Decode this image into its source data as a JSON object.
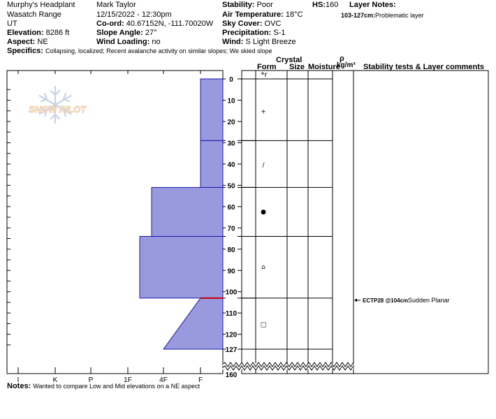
{
  "header": {
    "location": "Murphy's Headplant",
    "range": "Wasatch Range",
    "state": "UT",
    "elevation_label": "Elevation:",
    "elevation": "8286 ft",
    "aspect_label": "Aspect:",
    "aspect": "NE",
    "observer": "Mark Taylor",
    "datetime": "12/15/2022 - 12:30pm",
    "coord_label": "Co-ord:",
    "coord": "40.67152N, -111.70020W",
    "slope_label": "Slope Angle:",
    "slope": "27°",
    "wind_loading_label": "Wind Loading:",
    "wind_loading": "no",
    "stability_label": "Stability:",
    "stability": "Poor",
    "air_temp_label": "Air Temperature:",
    "air_temp": "18°C",
    "sky_label": "Sky Cover:",
    "sky": "OVC",
    "precip_label": "Precipitation:",
    "precip": "S-1",
    "wind_label": "Wind:",
    "wind": "S Light Breeze",
    "hs_label": "HS:",
    "hs": "160",
    "layer_notes_label": "Layer Notes:",
    "layer_note_depth": "103-127cm:",
    "layer_note_text": "Problematic layer",
    "specifics_label": "Specifics:",
    "specifics": "Collapsing, localized; Recent avalanche activity on similar slopes; We skied slope"
  },
  "notes": {
    "label": "Notes:",
    "text": "Wanted to compare Low and Mid elevations on a NE aspect"
  },
  "logo": {
    "text": "SNOW PILOT"
  },
  "columns": {
    "crystal": "Crystal",
    "form": "Form",
    "size": "Size",
    "moisture": "Moisture",
    "rho": "ρ",
    "density": "kg/m³",
    "comments": "Stability tests & Layer comments"
  },
  "colors": {
    "layer_fill": "#9999dd",
    "layer_stroke": "#1a1ab0",
    "red_line": "#cc0000",
    "grid": "#000000"
  },
  "chart_data": {
    "type": "snow_profile_hardness",
    "hardness_scale": [
      "I",
      "K",
      "P",
      "1F",
      "4F",
      "F"
    ],
    "depth_ticks": [
      0,
      10,
      20,
      30,
      40,
      50,
      60,
      70,
      80,
      90,
      100,
      110,
      120,
      127
    ],
    "depth_bottom_label": "160",
    "depth_range_cm": [
      0,
      160
    ],
    "layer_boundaries_cm": [
      0,
      29,
      51,
      74,
      103,
      127
    ],
    "layers": [
      {
        "top": 0,
        "bottom": 29,
        "hardness": "F"
      },
      {
        "top": 29,
        "bottom": 51,
        "hardness": "F"
      },
      {
        "top": 51,
        "bottom": 74,
        "hardness": "4F+"
      },
      {
        "top": 74,
        "bottom": 103,
        "hardness": "1F-"
      },
      {
        "top": 103,
        "bottom": 127,
        "hardness_top": "F",
        "hardness_bottom": "4F"
      }
    ],
    "surface_form": "*r",
    "grain_forms": [
      {
        "depth": 15,
        "symbol": "+"
      },
      {
        "depth": 40,
        "symbol": "/"
      },
      {
        "depth": 62,
        "symbol": "●"
      },
      {
        "depth": 88,
        "symbol": "⌂"
      },
      {
        "depth": 115,
        "symbol": "□"
      }
    ],
    "stability_tests": [
      {
        "depth": 104,
        "label": "ECTP28 @104cm",
        "comment": "Sudden Planar"
      }
    ]
  }
}
